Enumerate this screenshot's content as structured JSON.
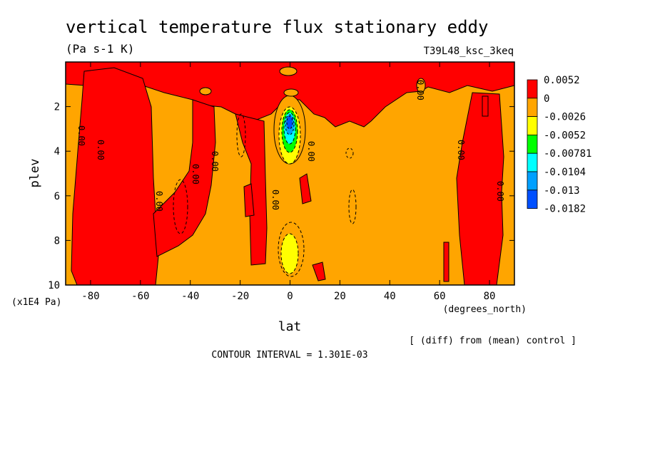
{
  "chart_data": {
    "type": "heatmap",
    "title": "vertical temperature flux stationary eddy",
    "units": "(Pa s-1 K)",
    "run_label": "T39L48_ksc_3keq",
    "xlabel": "lat",
    "x_units": "(degrees_north)",
    "ylabel": "plev",
    "y_units": "(x1E4 Pa)",
    "xlim": [
      -90,
      90
    ],
    "ylim": [
      10,
      0
    ],
    "xticks": [
      "-80",
      "-60",
      "-40",
      "-20",
      "0",
      "20",
      "40",
      "60",
      "80"
    ],
    "yticks": [
      "2",
      "4",
      "6",
      "8",
      "10"
    ],
    "contour_labels": [
      "0.00",
      "0.00",
      "0.00",
      "0.00",
      "0.00",
      "0.00",
      "0.00",
      "0.00",
      "0.00",
      "0.00"
    ],
    "colorbar": {
      "labels": [
        "0.0052",
        "0",
        "-0.0026",
        "-0.0052",
        "-0.00781",
        "-0.0104",
        "-0.013",
        "-0.0182"
      ],
      "colors": [
        "#ff0000",
        "#ffa500",
        "#ffff00",
        "#00ff00",
        "#00ffff",
        "#00a0ff",
        "#0050ff"
      ]
    },
    "footnote": "[ (diff) from (mean) control ]",
    "contour_interval": "CONTOUR INTERVAL = 1.301E-03"
  }
}
